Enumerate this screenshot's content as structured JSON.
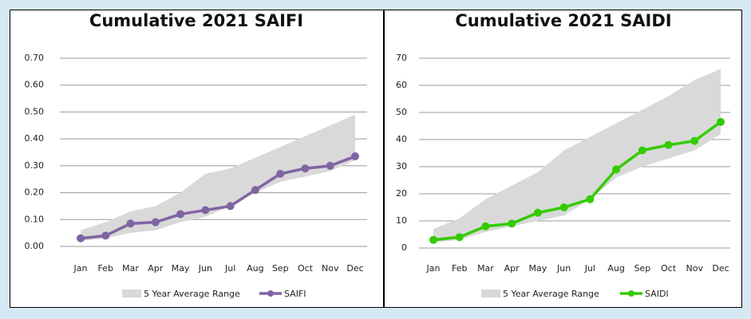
{
  "chart_data": [
    {
      "type": "line",
      "title": "Cumulative 2021 SAIFI",
      "categories": [
        "Jan",
        "Feb",
        "Mar",
        "Apr",
        "May",
        "Jun",
        "Jul",
        "Aug",
        "Sep",
        "Oct",
        "Nov",
        "Dec"
      ],
      "ylim": [
        0,
        0.7
      ],
      "yticks": [
        {
          "value": 0,
          "label": "0.00"
        },
        {
          "value": 0.1,
          "label": "0.10"
        },
        {
          "value": 0.2,
          "label": "0.20"
        },
        {
          "value": 0.3,
          "label": "0.30"
        },
        {
          "value": 0.4,
          "label": "0.40"
        },
        {
          "value": 0.5,
          "label": "0.50"
        },
        {
          "value": 0.6,
          "label": "0.60"
        },
        {
          "value": 0.7,
          "label": "0.70"
        }
      ],
      "grid": true,
      "series": [
        {
          "name": "5 Year Average Range",
          "color": "#d9d9d9",
          "type": "range",
          "low": [
            0.02,
            0.03,
            0.05,
            0.06,
            0.09,
            0.11,
            0.15,
            0.2,
            0.24,
            0.26,
            0.28,
            0.32
          ],
          "high": [
            0.06,
            0.09,
            0.13,
            0.15,
            0.2,
            0.27,
            0.29,
            0.33,
            0.37,
            0.41,
            0.45,
            0.49
          ]
        },
        {
          "name": "SAIFI",
          "color": "#8064a2",
          "values": [
            0.03,
            0.04,
            0.085,
            0.09,
            0.12,
            0.135,
            0.15,
            0.21,
            0.27,
            0.29,
            0.3,
            0.335
          ]
        }
      ]
    },
    {
      "type": "line",
      "title": "Cumulative 2021 SAIDI",
      "categories": [
        "Jan",
        "Feb",
        "Mar",
        "Apr",
        "May",
        "Jun",
        "Jul",
        "Aug",
        "Sep",
        "Oct",
        "Nov",
        "Dec"
      ],
      "ylim": [
        0,
        70
      ],
      "yticks": [
        0,
        10,
        20,
        30,
        40,
        50,
        60,
        70
      ],
      "grid": true,
      "series": [
        {
          "name": "5 Year Average Range",
          "color": "#d9d9d9",
          "type": "range",
          "low": [
            2,
            3,
            6,
            8,
            10,
            12,
            18,
            26,
            30,
            33,
            36,
            42
          ],
          "high": [
            7,
            11,
            18,
            23,
            28,
            36,
            41,
            46,
            51,
            56,
            62,
            66
          ]
        },
        {
          "name": "SAIDI",
          "color": "#33cc00",
          "values": [
            3,
            4,
            8,
            9,
            13,
            15,
            18,
            29,
            36,
            38,
            39.5,
            46.5
          ]
        }
      ]
    }
  ]
}
